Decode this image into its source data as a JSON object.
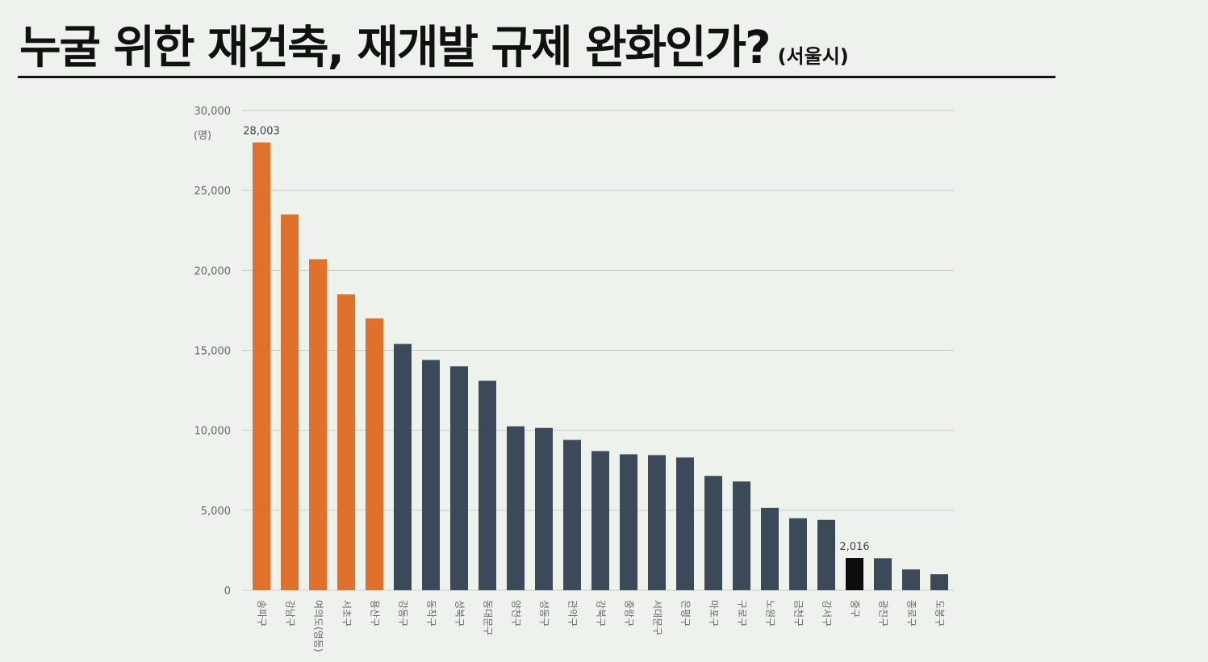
{
  "header": {
    "title": "누굴 위한 재건축, 재개발 규제 완화인가?",
    "subtitle": "(서울시)"
  },
  "chart_data": {
    "type": "bar",
    "title": "누굴 위한 재건축, 재개발 규제 완화인가?",
    "ylabel": "(명)",
    "ylim": [
      0,
      30000
    ],
    "yticks": [
      0,
      5000,
      10000,
      15000,
      20000,
      25000,
      30000
    ],
    "ytick_labels": [
      "0",
      "5,000",
      "10,000",
      "15,000",
      "20,000",
      "25,000",
      "30,000"
    ],
    "grid": true,
    "categories": [
      "송파구",
      "강남구",
      "여의도(영등)",
      "서초구",
      "용산구",
      "강동구",
      "동작구",
      "성북구",
      "동대문구",
      "양천구",
      "성동구",
      "관악구",
      "강북구",
      "중랑구",
      "서대문구",
      "은평구",
      "마포구",
      "구로구",
      "노원구",
      "금천구",
      "강서구",
      "중구",
      "광진구",
      "종로구",
      "도봉구"
    ],
    "values": [
      28003,
      23500,
      20700,
      18500,
      17000,
      15400,
      14400,
      14000,
      13100,
      10250,
      10150,
      9400,
      8700,
      8500,
      8450,
      8300,
      7150,
      6800,
      5150,
      4500,
      4400,
      2016,
      2000,
      1300,
      1000
    ],
    "groups": [
      "highlight",
      "highlight",
      "highlight",
      "highlight",
      "highlight",
      "base",
      "base",
      "base",
      "base",
      "base",
      "base",
      "base",
      "base",
      "base",
      "base",
      "base",
      "base",
      "base",
      "base",
      "base",
      "base",
      "focus",
      "base",
      "base",
      "base"
    ],
    "data_labels": {
      "0": "28,003",
      "21": "2,016"
    },
    "colors": {
      "highlight": "#e0712c",
      "base": "#3c4958",
      "focus": "#0d0d0d"
    }
  }
}
